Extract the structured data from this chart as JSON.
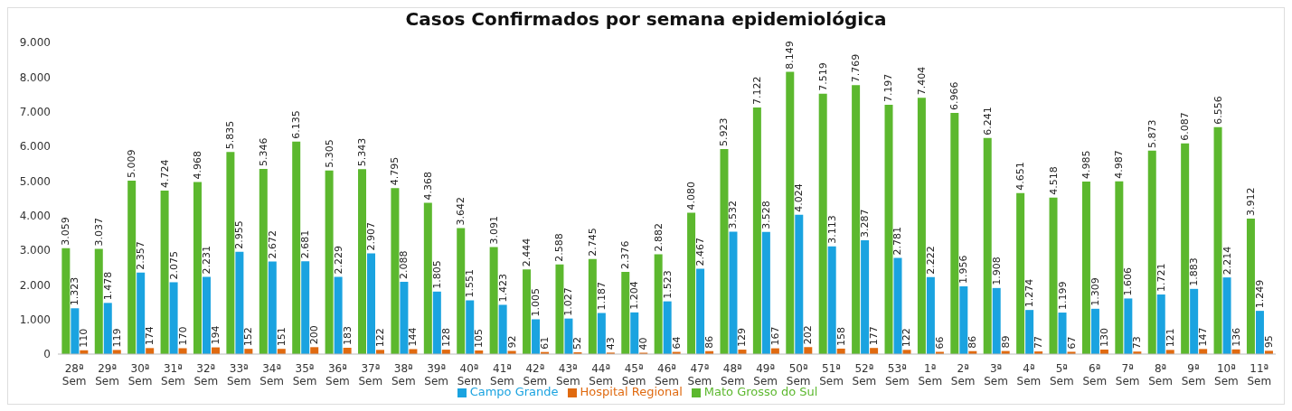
{
  "chart_data": {
    "type": "bar",
    "title": "Casos Confirmados por semana epidemiológica",
    "categories": [
      "28ª Sem",
      "29ª Sem",
      "30ª Sem",
      "31ª Sem",
      "32ª Sem",
      "33ª Sem",
      "34ª Sem",
      "35ª Sem",
      "36ª Sem",
      "37ª Sem",
      "38ª Sem",
      "39ª Sem",
      "40ª Sem",
      "41ª Sem",
      "42ª Sem",
      "43ª Sem",
      "44ª Sem",
      "45ª Sem",
      "46ª Sem",
      "47ª Sem",
      "48ª Sem",
      "49ª Sem",
      "50ª Sem",
      "51ª Sem",
      "52ª Sem",
      "53ª Sem",
      "1ª Sem",
      "2ª Sem",
      "3ª Sem",
      "4ª Sem",
      "5ª Sem",
      "6ª Sem",
      "7ª Sem",
      "8ª Sem",
      "9ª Sem",
      "10ª Sem",
      "11ª Sem"
    ],
    "series": [
      {
        "name": "Mato Grosso do Sul",
        "color": "#5cb82e",
        "values": [
          3059,
          3037,
          5009,
          4724,
          4968,
          5835,
          5346,
          6135,
          5305,
          5343,
          4795,
          4368,
          3642,
          3091,
          2444,
          2588,
          2745,
          2376,
          2882,
          4080,
          5923,
          7122,
          8149,
          7519,
          7769,
          7197,
          7404,
          6966,
          6241,
          4651,
          4518,
          4985,
          4987,
          5873,
          6087,
          6556,
          3912
        ],
        "value_labels": [
          "3.059",
          "3.037",
          "5.009",
          "4.724",
          "4.968",
          "5.835",
          "5.346",
          "6.135",
          "5.305",
          "5.343",
          "4.795",
          "4.368",
          "3.642",
          "3.091",
          "2.444",
          "2.588",
          "2.745",
          "2.376",
          "2.882",
          "4.080",
          "5.923",
          "7.122",
          "8.149",
          "7.519",
          "7.769",
          "7.197",
          "7.404",
          "6.966",
          "6.241",
          "4.651",
          "4.518",
          "4.985",
          "4.987",
          "5.873",
          "6.087",
          "6.556",
          "3.912"
        ]
      },
      {
        "name": "Campo Grande",
        "color": "#1aa3e0",
        "values": [
          1323,
          1478,
          2357,
          2075,
          2231,
          2955,
          2672,
          2681,
          2229,
          2907,
          2088,
          1805,
          1551,
          1423,
          1005,
          1027,
          1187,
          1204,
          1523,
          2467,
          3532,
          3528,
          4024,
          3113,
          3287,
          2781,
          2222,
          1956,
          1908,
          1274,
          1199,
          1309,
          1606,
          1721,
          1883,
          2214,
          1249
        ],
        "value_labels": [
          "1.323",
          "1.478",
          "2.357",
          "2.075",
          "2.231",
          "2.955",
          "2.672",
          "2.681",
          "2.229",
          "2.907",
          "2.088",
          "1.805",
          "1.551",
          "1.423",
          "1.005",
          "1.027",
          "1.187",
          "1.204",
          "1.523",
          "2.467",
          "3.532",
          "3.528",
          "4.024",
          "3.113",
          "3.287",
          "2.781",
          "2.222",
          "1.956",
          "1.908",
          "1.274",
          "1.199",
          "1.309",
          "1.606",
          "1.721",
          "1.883",
          "2.214",
          "1.249"
        ]
      },
      {
        "name": "Hospital Regional",
        "color": "#e06a10",
        "values": [
          110,
          119,
          174,
          170,
          194,
          152,
          151,
          200,
          183,
          122,
          144,
          128,
          105,
          92,
          61,
          52,
          43,
          40,
          64,
          86,
          129,
          167,
          202,
          158,
          177,
          122,
          66,
          86,
          89,
          77,
          67,
          130,
          73,
          121,
          147,
          136,
          95
        ],
        "value_labels": [
          "110",
          "119",
          "174",
          "170",
          "194",
          "152",
          "151",
          "200",
          "183",
          "122",
          "144",
          "128",
          "105",
          "92",
          "61",
          "52",
          "43",
          "40",
          "64",
          "86",
          "129",
          "167",
          "202",
          "158",
          "177",
          "122",
          "66",
          "86",
          "89",
          "77",
          "67",
          "130",
          "73",
          "121",
          "147",
          "136",
          "95"
        ]
      }
    ],
    "ylim": [
      0,
      9000
    ],
    "yticks": [
      0,
      {
        "value": 1000,
        "label": "1.000"
      },
      {
        "value": 2000,
        "label": "2.000"
      },
      {
        "value": 3000,
        "label": "3.000"
      },
      {
        "value": 4000,
        "label": "4.000"
      },
      {
        "value": 5000,
        "label": "5.000"
      },
      {
        "value": 6000,
        "label": "6.000"
      },
      {
        "value": 7000,
        "label": "7.000"
      },
      {
        "value": 8000,
        "label": "8.000"
      },
      {
        "value": 9000,
        "label": "9.000"
      }
    ],
    "legend": "bottom"
  }
}
